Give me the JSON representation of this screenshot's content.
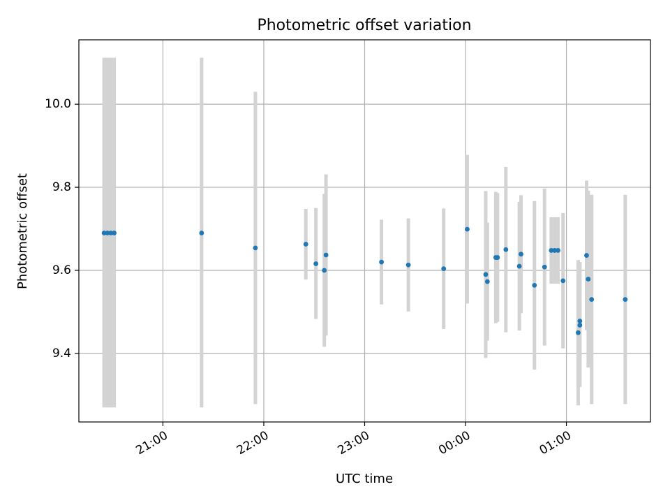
{
  "chart_data": {
    "type": "scatter",
    "title": "Photometric offset variation",
    "xlabel": "UTC time",
    "ylabel": "Photometric offset",
    "x_unit": "UTC time (HH:MM)",
    "xlim": [
      "20:10",
      "01:50"
    ],
    "ylim": [
      9.235,
      10.155
    ],
    "grid": true,
    "x_ticks": [
      "21:00",
      "22:00",
      "23:00",
      "00:00",
      "01:00"
    ],
    "y_ticks": [
      9.4,
      9.6,
      9.8,
      10.0
    ],
    "y_tick_labels": [
      "9.4",
      "9.6",
      "9.8",
      "10.0"
    ],
    "marker_color": "#1f77b4",
    "errorbar_color": "#d3d3d3",
    "points": [
      {
        "time": "20:25",
        "y": 9.69,
        "err_low": 9.27,
        "err_high": 10.112
      },
      {
        "time": "20:27",
        "y": 9.69,
        "err_low": 9.27,
        "err_high": 10.112
      },
      {
        "time": "20:29",
        "y": 9.69,
        "err_low": 9.27,
        "err_high": 10.112
      },
      {
        "time": "20:31",
        "y": 9.69,
        "err_low": 9.27,
        "err_high": 10.112
      },
      {
        "time": "21:23",
        "y": 9.69,
        "err_low": 9.27,
        "err_high": 10.112
      },
      {
        "time": "21:55",
        "y": 9.654,
        "err_low": 9.278,
        "err_high": 10.03
      },
      {
        "time": "22:25",
        "y": 9.663,
        "err_low": 9.578,
        "err_high": 9.748
      },
      {
        "time": "22:31",
        "y": 9.616,
        "err_low": 9.483,
        "err_high": 9.75
      },
      {
        "time": "22:36",
        "y": 9.6,
        "err_low": 9.416,
        "err_high": 9.784
      },
      {
        "time": "22:37",
        "y": 9.637,
        "err_low": 9.443,
        "err_high": 9.831
      },
      {
        "time": "23:10",
        "y": 9.62,
        "err_low": 9.518,
        "err_high": 9.722
      },
      {
        "time": "23:26",
        "y": 9.613,
        "err_low": 9.501,
        "err_high": 9.725
      },
      {
        "time": "23:47",
        "y": 9.604,
        "err_low": 9.459,
        "err_high": 9.749
      },
      {
        "time": "00:01",
        "y": 9.699,
        "err_low": 9.52,
        "err_high": 9.878
      },
      {
        "time": "00:12",
        "y": 9.59,
        "err_low": 9.389,
        "err_high": 9.791
      },
      {
        "time": "00:13",
        "y": 9.573,
        "err_low": 9.431,
        "err_high": 9.715
      },
      {
        "time": "00:18",
        "y": 9.631,
        "err_low": 9.473,
        "err_high": 9.789
      },
      {
        "time": "00:19",
        "y": 9.631,
        "err_low": 9.476,
        "err_high": 9.786
      },
      {
        "time": "00:24",
        "y": 9.65,
        "err_low": 9.451,
        "err_high": 9.849
      },
      {
        "time": "00:32",
        "y": 9.61,
        "err_low": 9.455,
        "err_high": 9.765
      },
      {
        "time": "00:33",
        "y": 9.639,
        "err_low": 9.497,
        "err_high": 9.781
      },
      {
        "time": "00:41",
        "y": 9.564,
        "err_low": 9.361,
        "err_high": 9.767
      },
      {
        "time": "00:47",
        "y": 9.608,
        "err_low": 9.419,
        "err_high": 9.797
      },
      {
        "time": "00:51",
        "y": 9.648,
        "err_low": 9.568,
        "err_high": 9.728
      },
      {
        "time": "00:53",
        "y": 9.648,
        "err_low": 9.568,
        "err_high": 9.728
      },
      {
        "time": "00:55",
        "y": 9.648,
        "err_low": 9.568,
        "err_high": 9.728
      },
      {
        "time": "00:58",
        "y": 9.575,
        "err_low": 9.412,
        "err_high": 9.738
      },
      {
        "time": "01:07",
        "y": 9.45,
        "err_low": 9.275,
        "err_high": 9.625
      },
      {
        "time": "01:08",
        "y": 9.478,
        "err_low": 9.337,
        "err_high": 9.62
      },
      {
        "time": "01:08",
        "y": 9.468,
        "err_low": 9.319,
        "err_high": 9.617
      },
      {
        "time": "01:12",
        "y": 9.636,
        "err_low": 9.456,
        "err_high": 9.816
      },
      {
        "time": "01:13",
        "y": 9.579,
        "err_low": 9.366,
        "err_high": 9.792
      },
      {
        "time": "01:15",
        "y": 9.53,
        "err_low": 9.278,
        "err_high": 9.782
      },
      {
        "time": "01:35",
        "y": 9.53,
        "err_low": 9.278,
        "err_high": 9.782
      }
    ]
  }
}
